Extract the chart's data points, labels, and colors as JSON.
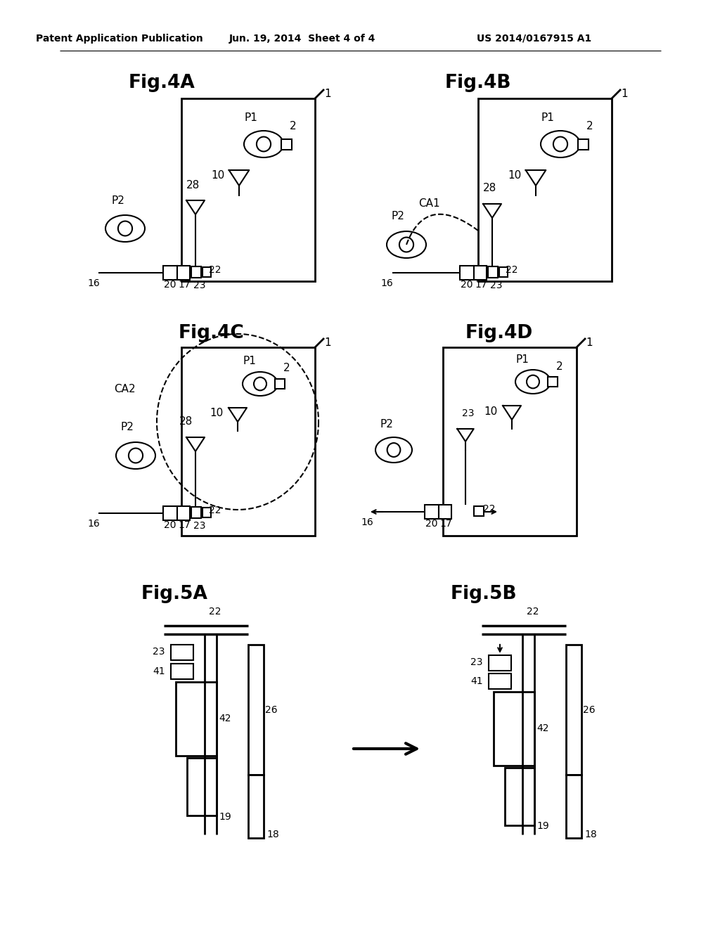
{
  "bg_color": "#ffffff",
  "lc": "#000000",
  "header_left": "Patent Application Publication",
  "header_mid": "Jun. 19, 2014  Sheet 4 of 4",
  "header_right": "US 2014/0167915 A1"
}
